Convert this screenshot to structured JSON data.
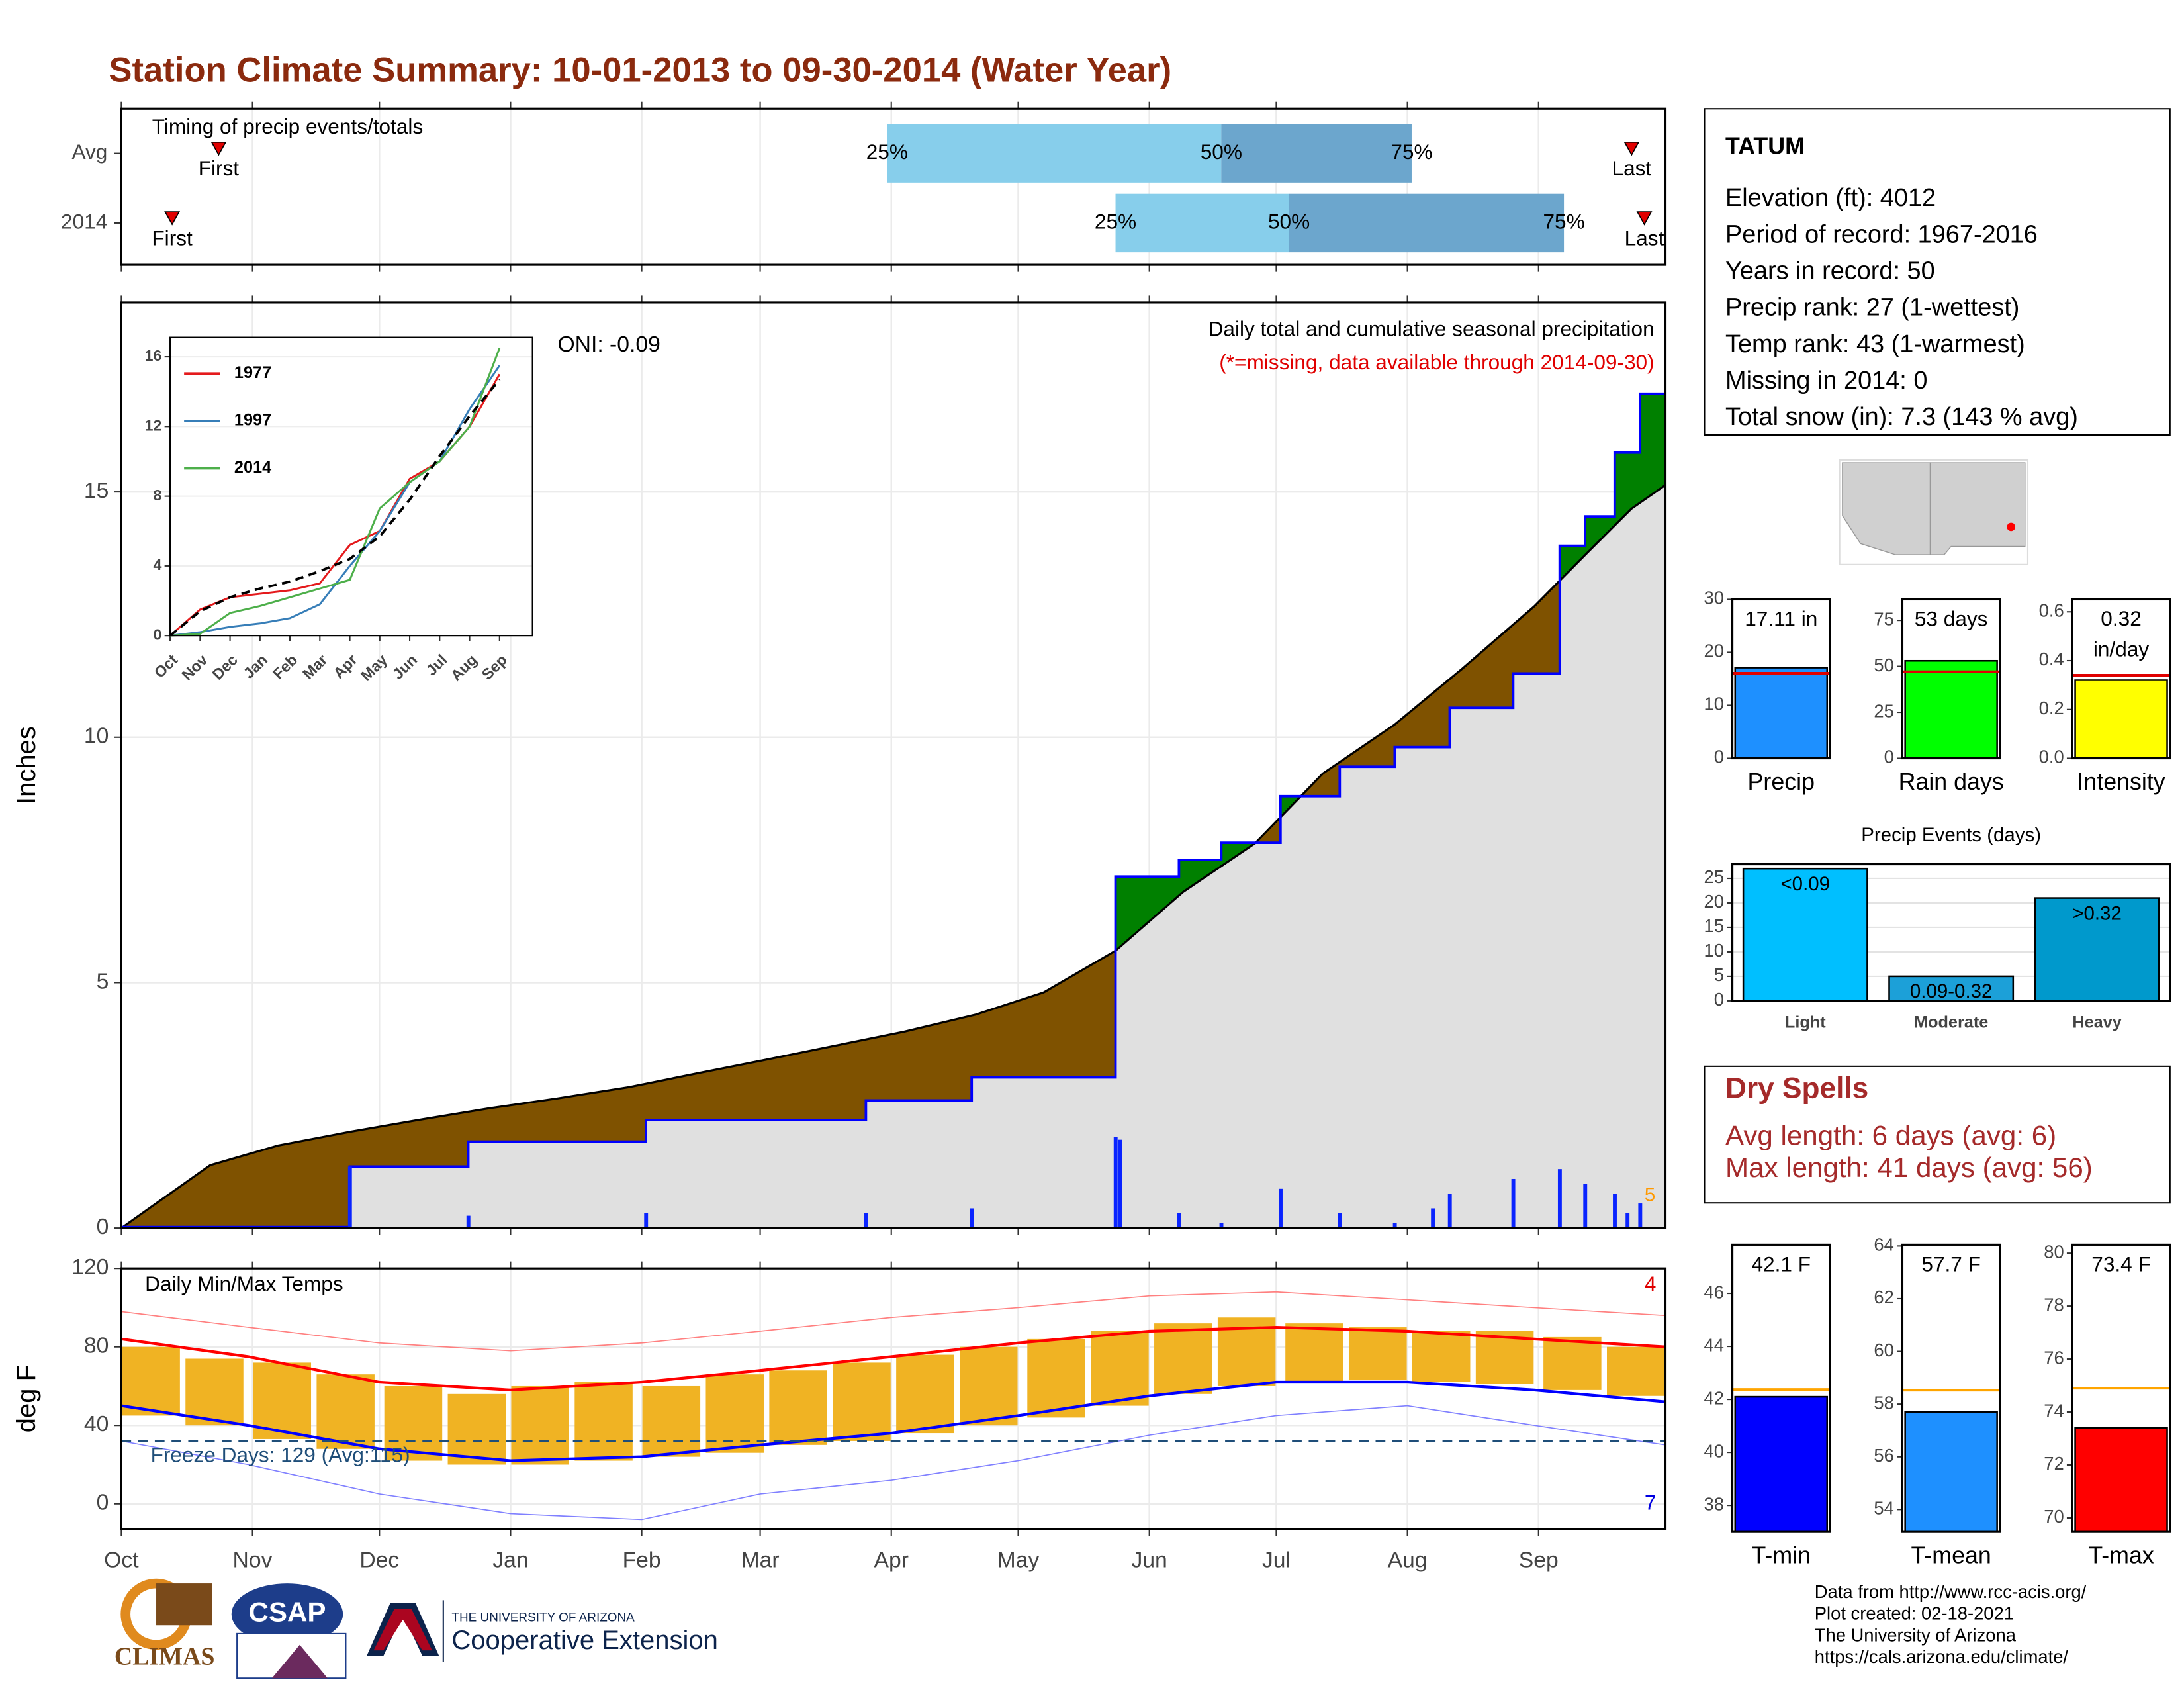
{
  "title": "Station Climate Summary: 10-01-2013 to 09-30-2014 (Water Year)",
  "chart_data": [
    {
      "type": "interval",
      "title": "Timing of precip events/totals",
      "marker_labels": {
        "first": "First",
        "last": "Last"
      },
      "quantile_labels": [
        "25%",
        "50%",
        "75%"
      ],
      "colors": {
        "lower": "#87ceeb",
        "upper": "#6ca6cd",
        "marker": "#e00000"
      },
      "rows": [
        {
          "label": "Avg",
          "first": 23,
          "q25": 181,
          "q50": 260,
          "q75": 305,
          "last": 357
        },
        {
          "label": "2014",
          "first": 12,
          "q25": 235,
          "q50": 276,
          "q75": 341,
          "last": 360
        }
      ]
    },
    {
      "type": "cumulative",
      "title": "Daily total and cumulative seasonal precipitation",
      "subtitle": "(*=missing, data available through 2014-09-30)",
      "annotation": "ONI: -0.09",
      "ylabel": "Inches",
      "count_label": "5",
      "ylim": [
        0,
        18.86
      ],
      "yticks": [
        0,
        5,
        10,
        15
      ],
      "colors": {
        "avg_fill": "#e0e0e0",
        "deficit": "#7f5200",
        "surplus": "#008000",
        "season": "#0000ff",
        "daily": "#0a24ff",
        "count": "#ff9900"
      },
      "avg": {
        "x": [
          0,
          21,
          37,
          54,
          70,
          87,
          103,
          120,
          136,
          153,
          169,
          185,
          202,
          218,
          235,
          251,
          268,
          284,
          301,
          317,
          334,
          347,
          357,
          365
        ],
        "values": [
          0,
          1.28,
          1.68,
          1.96,
          2.2,
          2.44,
          2.64,
          2.87,
          3.15,
          3.44,
          3.72,
          4.0,
          4.35,
          4.8,
          5.65,
          6.85,
          7.84,
          9.26,
          10.26,
          11.4,
          12.67,
          13.8,
          14.66,
          15.14
        ]
      },
      "season": {
        "x": [
          0,
          54,
          82,
          124,
          176,
          201,
          235,
          250,
          260,
          274,
          288,
          301,
          314,
          329,
          340,
          346,
          353,
          359
        ],
        "values": [
          0.02,
          1.25,
          1.76,
          2.2,
          2.6,
          3.07,
          7.16,
          7.5,
          7.85,
          8.8,
          9.4,
          9.8,
          10.6,
          11.3,
          13.9,
          14.5,
          15.8,
          17.0
        ]
      },
      "daily": {
        "x": [
          54,
          82,
          124,
          176,
          201,
          235,
          236,
          250,
          260,
          274,
          288,
          301,
          310,
          314,
          329,
          340,
          346,
          353,
          356,
          359
        ],
        "values": [
          1.25,
          0.25,
          0.3,
          0.3,
          0.4,
          1.85,
          1.8,
          0.3,
          0.1,
          0.8,
          0.3,
          0.1,
          0.4,
          0.7,
          1.0,
          1.2,
          0.9,
          0.7,
          0.3,
          0.5
        ]
      }
    },
    {
      "type": "line",
      "categories": [
        "Oct",
        "Nov",
        "Dec",
        "Jan",
        "Feb",
        "Mar",
        "Apr",
        "May",
        "Jun",
        "Jul",
        "Aug",
        "Sep"
      ],
      "ylim": [
        0,
        17.12
      ],
      "yticks": [
        0,
        4,
        8,
        12,
        16
      ],
      "series": [
        {
          "name": "1977",
          "color": "#e41a1c",
          "values": [
            0,
            1.5,
            2.2,
            2.4,
            2.6,
            3.0,
            5.2,
            6.0,
            9.0,
            10.0,
            12.0,
            15.0
          ]
        },
        {
          "name": "1997",
          "color": "#377eb8",
          "values": [
            0,
            0.2,
            0.5,
            0.7,
            1.0,
            1.8,
            4.0,
            6.0,
            8.8,
            10.0,
            13.0,
            15.5
          ]
        },
        {
          "name": "2014",
          "color": "#4daf4a",
          "values": [
            0,
            0.1,
            1.3,
            1.7,
            2.2,
            2.7,
            3.2,
            7.3,
            8.8,
            10.0,
            12.0,
            16.5
          ]
        },
        {
          "color": "#000000",
          "dashed": true,
          "values": [
            0,
            1.4,
            2.2,
            2.7,
            3.1,
            3.7,
            4.4,
            5.7,
            7.8,
            10.3,
            12.6,
            14.7
          ]
        }
      ]
    },
    {
      "type": "temperature",
      "title": "Daily Min/Max Temps",
      "ylabel": "deg F",
      "freeze": 32,
      "freeze_label": "Freeze Days: 129 (Avg:115)",
      "count_labels": [
        "4",
        "7"
      ],
      "ylim": [
        -12.9,
        120
      ],
      "yticks": [
        0,
        40,
        80,
        120
      ],
      "xlim": [
        0,
        365
      ],
      "xticks": [
        {
          "value": 0,
          "label": "Oct"
        },
        {
          "value": 31,
          "label": "Nov"
        },
        {
          "value": 61,
          "label": "Dec"
        },
        {
          "value": 92,
          "label": "Jan"
        },
        {
          "value": 123,
          "label": "Feb"
        },
        {
          "value": 151,
          "label": "Mar"
        },
        {
          "value": 182,
          "label": "Apr"
        },
        {
          "value": 212,
          "label": "May"
        },
        {
          "value": 243,
          "label": "Jun"
        },
        {
          "value": 273,
          "label": "Jul"
        },
        {
          "value": 304,
          "label": "Aug"
        },
        {
          "value": 335,
          "label": "Sep"
        }
      ],
      "colors": {
        "bars": "#f0b323",
        "avg_max": "#ff0000",
        "avg_min": "#0000ff",
        "record_max": "#ff8080",
        "record_min": "#8080ff",
        "freeze": "#1f4e79"
      },
      "bars": {
        "x": [
          7,
          22,
          38,
          53,
          69,
          84,
          99,
          114,
          130,
          145,
          160,
          175,
          190,
          205,
          221,
          236,
          251,
          266,
          282,
          297,
          312,
          327,
          343,
          358
        ],
        "tmax": [
          80,
          74,
          72,
          66,
          60,
          56,
          60,
          62,
          60,
          66,
          68,
          72,
          76,
          80,
          84,
          88,
          92,
          95,
          92,
          90,
          88,
          88,
          85,
          80
        ],
        "tmin": [
          45,
          40,
          33,
          28,
          22,
          20,
          20,
          22,
          24,
          26,
          30,
          32,
          36,
          40,
          44,
          50,
          56,
          60,
          62,
          63,
          62,
          61,
          58,
          55
        ]
      },
      "lines": {
        "x": [
          0,
          30,
          61,
          92,
          123,
          151,
          182,
          212,
          243,
          273,
          304,
          334,
          365
        ],
        "avg_max": [
          84,
          75,
          62,
          58,
          62,
          68,
          75,
          82,
          88,
          90,
          88,
          84,
          80
        ],
        "avg_min": [
          50,
          40,
          28,
          22,
          24,
          30,
          36,
          45,
          55,
          62,
          62,
          58,
          52
        ],
        "record_max": [
          98,
          90,
          82,
          78,
          82,
          88,
          95,
          100,
          106,
          108,
          104,
          100,
          96
        ],
        "record_min": [
          32,
          20,
          5,
          -5,
          -8,
          5,
          12,
          22,
          35,
          45,
          50,
          40,
          30
        ]
      }
    },
    {
      "type": "bar",
      "categories": [
        "Precip"
      ],
      "values": [
        17.11
      ],
      "value_labels": [
        "17.11 in"
      ],
      "average": 16.05,
      "color": "#1e90ff",
      "avg_color": "#e00000",
      "ylim": [
        0,
        30
      ],
      "yticks": [
        0,
        10,
        20,
        30
      ]
    },
    {
      "type": "bar",
      "categories": [
        "Rain days"
      ],
      "values": [
        53
      ],
      "value_labels": [
        "53 days"
      ],
      "average": 47,
      "color": "#00ff00",
      "avg_color": "#e00000",
      "ylim": [
        0,
        86.4
      ],
      "yticks": [
        0,
        25,
        50,
        75
      ]
    },
    {
      "type": "bar",
      "categories": [
        "Intensity"
      ],
      "values": [
        0.32
      ],
      "value_labels": [
        "0.32\nin/day"
      ],
      "average": 0.34,
      "color": "#ffff00",
      "avg_color": "#e00000",
      "ylim": [
        0,
        0.651
      ],
      "yticks": [
        {
          "value": 0,
          "label": "0.0"
        },
        0.2,
        0.4,
        0.6
      ]
    },
    {
      "type": "bar",
      "title": "Precip Events (days)",
      "categories": [
        "Light",
        "Moderate",
        "Heavy"
      ],
      "values": [
        27,
        5,
        21
      ],
      "bar_labels": [
        "<0.09",
        "0.09-0.32",
        ">0.32"
      ],
      "colors": [
        "#00bfff",
        "#1ca0d8",
        "#0099cc"
      ],
      "grid": true,
      "ylim": [
        0,
        27.9
      ],
      "yticks": [
        0,
        5,
        10,
        15,
        20,
        25
      ]
    },
    {
      "type": "bar",
      "categories": [
        "T-min"
      ],
      "values": [
        42.1
      ],
      "value_labels": [
        "42.1 F"
      ],
      "average": 42.37,
      "color": "#0000ff",
      "avg_color": "#ffa500",
      "ylim": [
        37,
        47.84
      ],
      "yticks": [
        38,
        40,
        42,
        44,
        46
      ]
    },
    {
      "type": "bar",
      "categories": [
        "T-mean"
      ],
      "values": [
        57.7
      ],
      "value_labels": [
        "57.7 F"
      ],
      "average": 58.53,
      "color": "#1e90ff",
      "avg_color": "#ffa500",
      "ylim": [
        53.15,
        64.05
      ],
      "yticks": [
        54,
        56,
        58,
        60,
        62,
        64
      ]
    },
    {
      "type": "bar",
      "categories": [
        "T-max"
      ],
      "values": [
        73.4
      ],
      "value_labels": [
        "73.4 F"
      ],
      "average": 74.9,
      "color": "#ff0000",
      "avg_color": "#ffa500",
      "ylim": [
        69.47,
        80.32
      ],
      "yticks": [
        70,
        72,
        74,
        76,
        78,
        80
      ]
    }
  ],
  "info": {
    "station": "TATUM",
    "lines": [
      "Elevation (ft): 4012",
      "Period of record: 1967-2016",
      "Years in record: 50",
      "Precip rank: 27 (1-wettest)",
      "Temp rank: 43 (1-warmest)",
      "Missing in 2014: 0",
      "Total snow (in): 7.3 (143 % avg)"
    ]
  },
  "dry_spells": {
    "title": "Dry Spells",
    "lines": [
      "Avg length: 6 days (avg: 6)",
      "Max length: 41 days (avg: 56)"
    ]
  },
  "footer": [
    "Data from http://www.rcc-acis.org/",
    "Plot created: 02-18-2021",
    "The University of Arizona",
    "https://cals.arizona.edu/climate/"
  ],
  "logos": {
    "climas": "CLIMAS",
    "csap": "CSAP",
    "university": "THE UNIVERSITY OF ARIZONA",
    "extension": "Cooperative Extension"
  }
}
